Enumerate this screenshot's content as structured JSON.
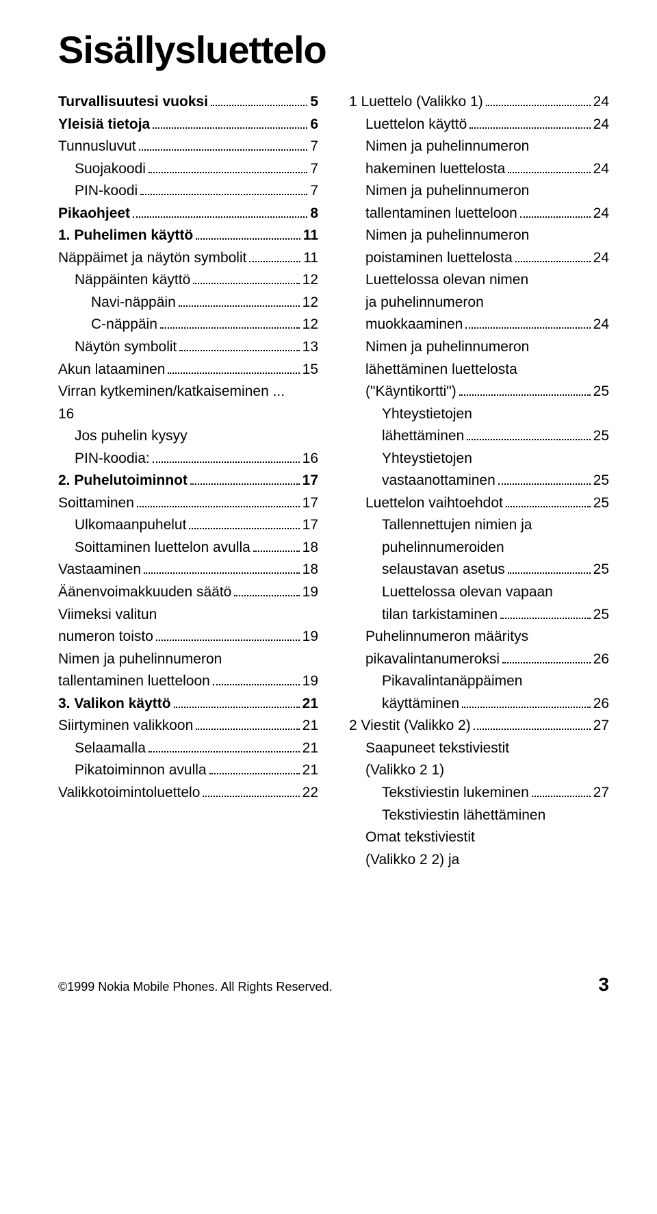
{
  "title": "Sisällysluettelo",
  "footer": {
    "copyright": "©1999 Nokia Mobile Phones. All Rights Reserved.",
    "page": "3"
  },
  "left": [
    {
      "label": "Turvallisuutesi vuoksi",
      "page": "5",
      "bold": true,
      "indent": 0
    },
    {
      "label": "Yleisiä tietoja",
      "page": "6",
      "bold": true,
      "indent": 0
    },
    {
      "label": "Tunnusluvut",
      "page": "7",
      "bold": false,
      "indent": 0
    },
    {
      "label": "Suojakoodi",
      "page": "7",
      "bold": false,
      "indent": 1
    },
    {
      "label": "PIN-koodi",
      "page": "7",
      "bold": false,
      "indent": 1
    },
    {
      "label": "Pikaohjeet",
      "page": "8",
      "bold": true,
      "indent": 0
    },
    {
      "label": "1. Puhelimen käyttö",
      "page": "11",
      "bold": true,
      "indent": 0
    },
    {
      "label": "Näppäimet ja näytön symbolit",
      "page": "11",
      "bold": false,
      "indent": 0
    },
    {
      "label": "Näppäinten käyttö",
      "page": "12",
      "bold": false,
      "indent": 1
    },
    {
      "label": "Navi-näppäin",
      "page": "12",
      "bold": false,
      "indent": 2
    },
    {
      "label": "C-näppäin",
      "page": "12",
      "bold": false,
      "indent": 2
    },
    {
      "label": "Näytön symbolit",
      "page": "13",
      "bold": false,
      "indent": 1
    },
    {
      "label": "Akun lataaminen",
      "page": "15",
      "bold": false,
      "indent": 0
    },
    {
      "block": [
        {
          "text": "Virran kytkeminen/katkaiseminen ...",
          "indent": 0
        },
        {
          "text": "16",
          "indent": 0
        }
      ]
    },
    {
      "block": [
        {
          "text": "Jos puhelin kysyy",
          "indent": 1
        }
      ]
    },
    {
      "label": "PIN-koodia:",
      "page": "16",
      "bold": false,
      "indent": 1
    },
    {
      "label": "2. Puhelutoiminnot",
      "page": "17",
      "bold": true,
      "indent": 0
    },
    {
      "label": "Soittaminen",
      "page": "17",
      "bold": false,
      "indent": 0
    },
    {
      "label": "Ulkomaanpuhelut",
      "page": "17",
      "bold": false,
      "indent": 1
    },
    {
      "label": "Soittaminen luettelon avulla",
      "page": "18",
      "bold": false,
      "indent": 1
    },
    {
      "label": "Vastaaminen",
      "page": "18",
      "bold": false,
      "indent": 0
    },
    {
      "label": "Äänenvoimakkuuden säätö",
      "page": "19",
      "bold": false,
      "indent": 0
    },
    {
      "block": [
        {
          "text": "Viimeksi valitun",
          "indent": 0
        }
      ]
    },
    {
      "label": "numeron toisto",
      "page": "19",
      "bold": false,
      "indent": 0
    },
    {
      "block": [
        {
          "text": "Nimen ja puhelinnumeron",
          "indent": 0
        }
      ]
    },
    {
      "label": "tallentaminen luetteloon",
      "page": "19",
      "bold": false,
      "indent": 0
    },
    {
      "label": "3. Valikon käyttö",
      "page": "21",
      "bold": true,
      "indent": 0
    },
    {
      "label": "Siirtyminen valikkoon",
      "page": "21",
      "bold": false,
      "indent": 0
    },
    {
      "label": "Selaamalla",
      "page": "21",
      "bold": false,
      "indent": 1
    },
    {
      "label": "Pikatoiminnon avulla",
      "page": "21",
      "bold": false,
      "indent": 1
    },
    {
      "label": "Valikkotoimintoluettelo",
      "page": "22",
      "bold": false,
      "indent": 0
    }
  ],
  "right": [
    {
      "label": "1 Luettelo (Valikko 1)",
      "page": "24",
      "bold": false,
      "indent": 0
    },
    {
      "label": "Luettelon käyttö",
      "page": "24",
      "bold": false,
      "indent": 1
    },
    {
      "block": [
        {
          "text": "Nimen ja puhelinnumeron",
          "indent": 1
        }
      ]
    },
    {
      "label": "hakeminen luettelosta",
      "page": "24",
      "bold": false,
      "indent": 1
    },
    {
      "block": [
        {
          "text": "Nimen ja puhelinnumeron",
          "indent": 1
        }
      ]
    },
    {
      "label": "tallentaminen luetteloon",
      "page": "24",
      "bold": false,
      "indent": 1
    },
    {
      "block": [
        {
          "text": "Nimen ja puhelinnumeron",
          "indent": 1
        }
      ]
    },
    {
      "label": "poistaminen luettelosta",
      "page": "24",
      "bold": false,
      "indent": 1
    },
    {
      "block": [
        {
          "text": "Luettelossa olevan nimen",
          "indent": 1
        },
        {
          "text": "ja puhelinnumeron",
          "indent": 1
        }
      ]
    },
    {
      "label": "muokkaaminen",
      "page": "24",
      "bold": false,
      "indent": 1
    },
    {
      "block": [
        {
          "text": "Nimen ja puhelinnumeron",
          "indent": 1
        },
        {
          "text": "lähettäminen luettelosta",
          "indent": 1
        }
      ]
    },
    {
      "label": "(\"Käyntikortti\")",
      "page": "25",
      "bold": false,
      "indent": 1
    },
    {
      "block": [
        {
          "text": "Yhteystietojen",
          "indent": 2
        }
      ]
    },
    {
      "label": "lähettäminen",
      "page": "25",
      "bold": false,
      "indent": 2
    },
    {
      "block": [
        {
          "text": "Yhteystietojen",
          "indent": 2
        }
      ]
    },
    {
      "label": "vastaanottaminen",
      "page": "25",
      "bold": false,
      "indent": 2
    },
    {
      "label": "Luettelon vaihtoehdot",
      "page": "25",
      "bold": false,
      "indent": 1
    },
    {
      "block": [
        {
          "text": "Tallennettujen nimien ja",
          "indent": 2
        },
        {
          "text": "puhelinnumeroiden",
          "indent": 2
        }
      ]
    },
    {
      "label": "selaustavan asetus",
      "page": "25",
      "bold": false,
      "indent": 2
    },
    {
      "block": [
        {
          "text": "Luettelossa olevan vapaan",
          "indent": 2
        }
      ]
    },
    {
      "label": "tilan tarkistaminen",
      "page": "25",
      "bold": false,
      "indent": 2
    },
    {
      "block": [
        {
          "text": "Puhelinnumeron määritys",
          "indent": 1
        }
      ]
    },
    {
      "label": "pikavalintanumeroksi",
      "page": "26",
      "bold": false,
      "indent": 1
    },
    {
      "block": [
        {
          "text": "Pikavalintanäppäimen",
          "indent": 2
        }
      ]
    },
    {
      "label": "käyttäminen",
      "page": "26",
      "bold": false,
      "indent": 2
    },
    {
      "label": "2 Viestit (Valikko 2)",
      "page": "27",
      "bold": false,
      "indent": 0
    },
    {
      "block": [
        {
          "text": "Saapuneet tekstiviestit",
          "indent": 1
        },
        {
          "text": "(Valikko 2 1)",
          "indent": 1
        }
      ]
    },
    {
      "label": "Tekstiviestin lukeminen",
      "page": "27",
      "bold": false,
      "indent": 2
    },
    {
      "block": [
        {
          "text": "Tekstiviestin lähettäminen",
          "indent": 2
        },
        {
          "text": "Omat tekstiviestit",
          "indent": 1
        },
        {
          "text": "(Valikko 2 2) ja",
          "indent": 1
        }
      ]
    }
  ]
}
